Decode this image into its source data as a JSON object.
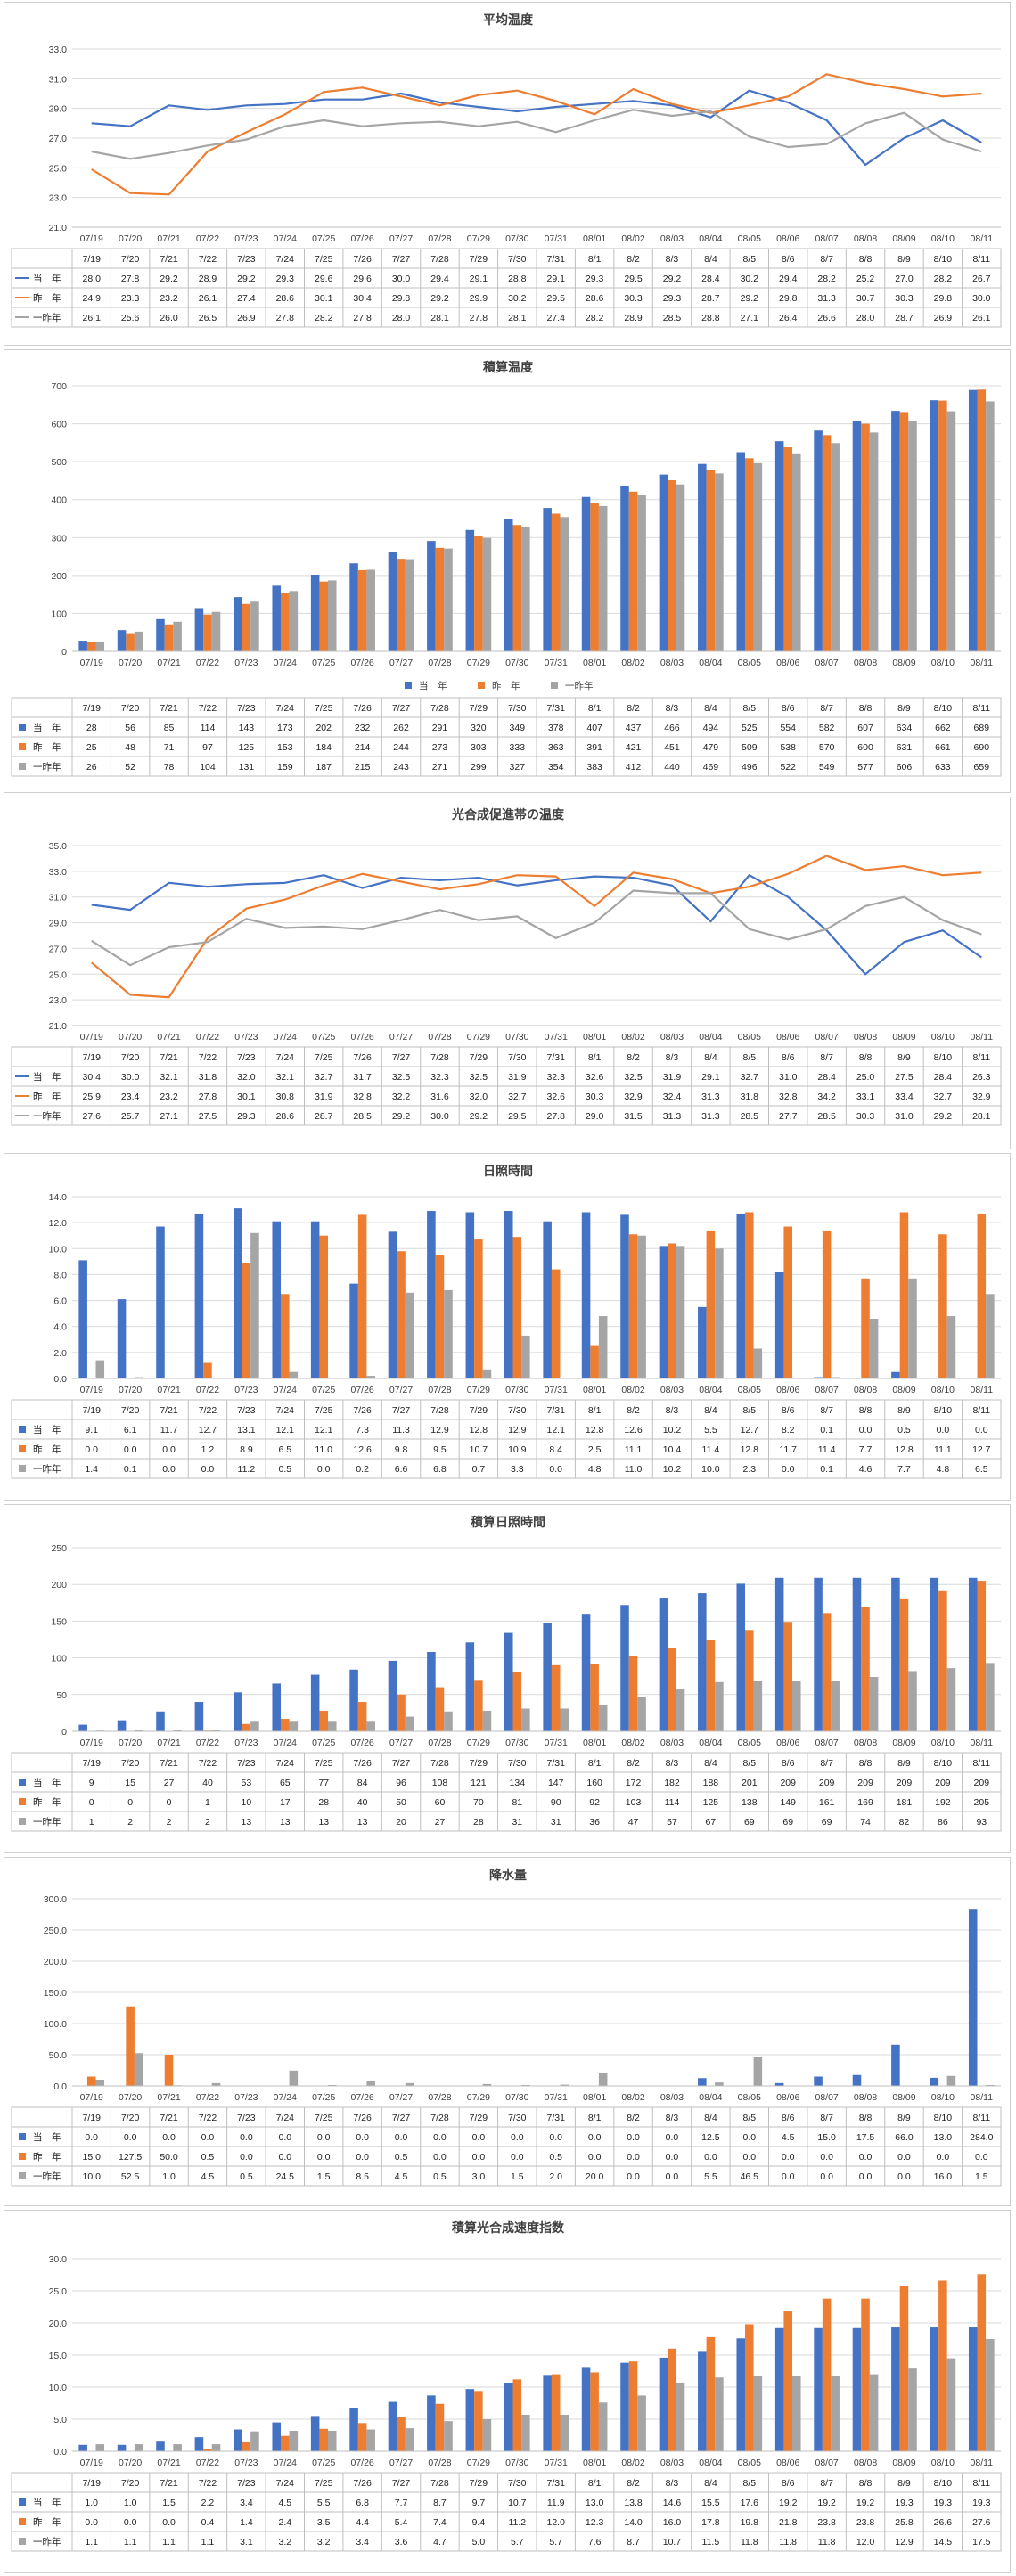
{
  "colors": {
    "current": "#4472C4",
    "last_year": "#ED7D31",
    "two_years": "#A5A5A5"
  },
  "legend_labels": {
    "current": "当　年",
    "last_year": "昨　年",
    "two_years": "一昨年"
  },
  "chart_data": [
    {
      "type": "line",
      "title": "平均温度",
      "ylim": [
        21.0,
        33.0
      ],
      "yticks": [
        "33.0",
        "31.0",
        "29.0",
        "27.0",
        "25.0",
        "23.0",
        "21.0"
      ],
      "axis_categories": [
        "07/19",
        "07/20",
        "07/21",
        "07/22",
        "07/23",
        "07/24",
        "07/25",
        "07/26",
        "07/27",
        "07/28",
        "07/29",
        "07/30",
        "07/31",
        "08/01",
        "08/02",
        "08/03",
        "08/04",
        "08/05",
        "08/06",
        "08/07",
        "08/08",
        "08/09",
        "08/10",
        "08/11"
      ],
      "categories": [
        "7/19",
        "7/20",
        "7/21",
        "7/22",
        "7/23",
        "7/24",
        "7/25",
        "7/26",
        "7/27",
        "7/28",
        "7/29",
        "7/30",
        "7/31",
        "8/1",
        "8/2",
        "8/3",
        "8/4",
        "8/5",
        "8/6",
        "8/7",
        "8/8",
        "8/9",
        "8/10",
        "8/11"
      ],
      "series": [
        {
          "name": "当　年",
          "key": "current",
          "values": [
            28.0,
            27.8,
            29.2,
            28.9,
            29.2,
            29.3,
            29.6,
            29.6,
            30.0,
            29.4,
            29.1,
            28.8,
            29.1,
            29.3,
            29.5,
            29.2,
            28.4,
            30.2,
            29.4,
            28.2,
            25.2,
            27.0,
            28.2,
            26.7
          ]
        },
        {
          "name": "昨　年",
          "key": "last_year",
          "values": [
            24.9,
            23.3,
            23.2,
            26.1,
            27.4,
            28.6,
            30.1,
            30.4,
            29.8,
            29.2,
            29.9,
            30.2,
            29.5,
            28.6,
            30.3,
            29.3,
            28.7,
            29.2,
            29.8,
            31.3,
            30.7,
            30.3,
            29.8,
            30.0
          ]
        },
        {
          "name": "一昨年",
          "key": "two_years",
          "values": [
            26.1,
            25.6,
            26.0,
            26.5,
            26.9,
            27.8,
            28.2,
            27.8,
            28.0,
            28.1,
            27.8,
            28.1,
            27.4,
            28.2,
            28.9,
            28.5,
            28.8,
            27.1,
            26.4,
            26.6,
            28.0,
            28.7,
            26.9,
            26.1
          ]
        }
      ]
    },
    {
      "type": "bar",
      "title": "積算温度",
      "ylim": [
        0,
        700
      ],
      "yticks": [
        "700",
        "600",
        "500",
        "400",
        "300",
        "200",
        "100",
        "0"
      ],
      "axis_categories": [
        "07/19",
        "07/20",
        "07/21",
        "07/22",
        "07/23",
        "07/24",
        "07/25",
        "07/26",
        "07/27",
        "07/28",
        "07/29",
        "07/30",
        "07/31",
        "08/01",
        "08/02",
        "08/03",
        "08/04",
        "08/05",
        "08/06",
        "08/07",
        "08/08",
        "08/09",
        "08/10",
        "08/11"
      ],
      "categories": [
        "7/19",
        "7/20",
        "7/21",
        "7/22",
        "7/23",
        "7/24",
        "7/25",
        "7/26",
        "7/27",
        "7/28",
        "7/29",
        "7/30",
        "7/31",
        "8/1",
        "8/2",
        "8/3",
        "8/4",
        "8/5",
        "8/6",
        "8/7",
        "8/8",
        "8/9",
        "8/10",
        "8/11"
      ],
      "series": [
        {
          "name": "当　年",
          "key": "current",
          "values": [
            28,
            56,
            85,
            114,
            143,
            173,
            202,
            232,
            262,
            291,
            320,
            349,
            378,
            407,
            437,
            466,
            494,
            525,
            554,
            582,
            607,
            634,
            662,
            689
          ]
        },
        {
          "name": "昨　年",
          "key": "last_year",
          "values": [
            25,
            48,
            71,
            97,
            125,
            153,
            184,
            214,
            244,
            273,
            303,
            333,
            363,
            391,
            421,
            451,
            479,
            509,
            538,
            570,
            600,
            631,
            661,
            690
          ]
        },
        {
          "name": "一昨年",
          "key": "two_years",
          "values": [
            26,
            52,
            78,
            104,
            131,
            159,
            187,
            215,
            243,
            271,
            299,
            327,
            354,
            383,
            412,
            440,
            469,
            496,
            522,
            549,
            577,
            606,
            633,
            659
          ]
        }
      ],
      "legend": [
        "当　年",
        "昨　年",
        "一昨年"
      ]
    },
    {
      "type": "line",
      "title": "光合成促進帯の温度",
      "ylim": [
        21.0,
        35.0
      ],
      "yticks": [
        "35.0",
        "33.0",
        "31.0",
        "29.0",
        "27.0",
        "25.0",
        "23.0",
        "21.0"
      ],
      "axis_categories": [
        "07/19",
        "07/20",
        "07/21",
        "07/22",
        "07/23",
        "07/24",
        "07/25",
        "07/26",
        "07/27",
        "07/28",
        "07/29",
        "07/30",
        "07/31",
        "08/01",
        "08/02",
        "08/03",
        "08/04",
        "08/05",
        "08/06",
        "08/07",
        "08/08",
        "08/09",
        "08/10",
        "08/11"
      ],
      "categories": [
        "7/19",
        "7/20",
        "7/21",
        "7/22",
        "7/23",
        "7/24",
        "7/25",
        "7/26",
        "7/27",
        "7/28",
        "7/29",
        "7/30",
        "7/31",
        "8/1",
        "8/2",
        "8/3",
        "8/4",
        "8/5",
        "8/6",
        "8/7",
        "8/8",
        "8/9",
        "8/10",
        "8/11"
      ],
      "series": [
        {
          "name": "当　年",
          "key": "current",
          "values": [
            30.4,
            30.0,
            32.1,
            31.8,
            32.0,
            32.1,
            32.7,
            31.7,
            32.5,
            32.3,
            32.5,
            31.9,
            32.3,
            32.6,
            32.5,
            31.9,
            29.1,
            32.7,
            31.0,
            28.4,
            25.0,
            27.5,
            28.4,
            26.3
          ]
        },
        {
          "name": "昨　年",
          "key": "last_year",
          "values": [
            25.9,
            23.4,
            23.2,
            27.8,
            30.1,
            30.8,
            31.9,
            32.8,
            32.2,
            31.6,
            32.0,
            32.7,
            32.6,
            30.3,
            32.9,
            32.4,
            31.3,
            31.8,
            32.8,
            34.2,
            33.1,
            33.4,
            32.7,
            32.9
          ]
        },
        {
          "name": "一昨年",
          "key": "two_years",
          "values": [
            27.6,
            25.7,
            27.1,
            27.5,
            29.3,
            28.6,
            28.7,
            28.5,
            29.2,
            30.0,
            29.2,
            29.5,
            27.8,
            29.0,
            31.5,
            31.3,
            31.3,
            28.5,
            27.7,
            28.5,
            30.3,
            31.0,
            29.2,
            28.1
          ]
        }
      ]
    },
    {
      "type": "bar",
      "title": "日照時間",
      "ylim": [
        0.0,
        14.0
      ],
      "yticks": [
        "14.0",
        "12.0",
        "10.0",
        "8.0",
        "6.0",
        "4.0",
        "2.0",
        "0.0"
      ],
      "axis_categories": [
        "07/19",
        "07/20",
        "07/21",
        "07/22",
        "07/23",
        "07/24",
        "07/25",
        "07/26",
        "07/27",
        "07/28",
        "07/29",
        "07/30",
        "07/31",
        "08/01",
        "08/02",
        "08/03",
        "08/04",
        "08/05",
        "08/06",
        "08/07",
        "08/08",
        "08/09",
        "08/10",
        "08/11"
      ],
      "categories": [
        "7/19",
        "7/20",
        "7/21",
        "7/22",
        "7/23",
        "7/24",
        "7/25",
        "7/26",
        "7/27",
        "7/28",
        "7/29",
        "7/30",
        "7/31",
        "8/1",
        "8/2",
        "8/3",
        "8/4",
        "8/5",
        "8/6",
        "8/7",
        "8/8",
        "8/9",
        "8/10",
        "8/11"
      ],
      "series": [
        {
          "name": "当　年",
          "key": "current",
          "values": [
            9.1,
            6.1,
            11.7,
            12.7,
            13.1,
            12.1,
            12.1,
            7.3,
            11.3,
            12.9,
            12.8,
            12.9,
            12.1,
            12.8,
            12.6,
            10.2,
            5.5,
            12.7,
            8.2,
            0.1,
            0.0,
            0.5,
            0.0,
            0.0
          ]
        },
        {
          "name": "昨　年",
          "key": "last_year",
          "values": [
            0.0,
            0.0,
            0.0,
            1.2,
            8.9,
            6.5,
            11.0,
            12.6,
            9.8,
            9.5,
            10.7,
            10.9,
            8.4,
            2.5,
            11.1,
            10.4,
            11.4,
            12.8,
            11.7,
            11.4,
            7.7,
            12.8,
            11.1,
            12.7
          ]
        },
        {
          "name": "一昨年",
          "key": "two_years",
          "values": [
            1.4,
            0.1,
            0.0,
            0.0,
            11.2,
            0.5,
            0.0,
            0.2,
            6.6,
            6.8,
            0.7,
            3.3,
            0.0,
            4.8,
            11.0,
            10.2,
            10.0,
            2.3,
            0.0,
            0.1,
            4.6,
            7.7,
            4.8,
            6.5
          ]
        }
      ]
    },
    {
      "type": "bar",
      "title": "積算日照時間",
      "ylim": [
        0,
        250
      ],
      "yticks": [
        "250",
        "200",
        "150",
        "100",
        "50",
        "0"
      ],
      "axis_categories": [
        "07/19",
        "07/20",
        "07/21",
        "07/22",
        "07/23",
        "07/24",
        "07/25",
        "07/26",
        "07/27",
        "07/28",
        "07/29",
        "07/30",
        "07/31",
        "08/01",
        "08/02",
        "08/03",
        "08/04",
        "08/05",
        "08/06",
        "08/07",
        "08/08",
        "08/09",
        "08/10",
        "08/11"
      ],
      "categories": [
        "7/19",
        "7/20",
        "7/21",
        "7/22",
        "7/23",
        "7/24",
        "7/25",
        "7/26",
        "7/27",
        "7/28",
        "7/29",
        "7/30",
        "7/31",
        "8/1",
        "8/2",
        "8/3",
        "8/4",
        "8/5",
        "8/6",
        "8/7",
        "8/8",
        "8/9",
        "8/10",
        "8/11"
      ],
      "series": [
        {
          "name": "当　年",
          "key": "current",
          "values": [
            9,
            15,
            27,
            40,
            53,
            65,
            77,
            84,
            96,
            108,
            121,
            134,
            147,
            160,
            172,
            182,
            188,
            201,
            209,
            209,
            209,
            209,
            209,
            209
          ]
        },
        {
          "name": "昨　年",
          "key": "last_year",
          "values": [
            0,
            0,
            0,
            1,
            10,
            17,
            28,
            40,
            50,
            60,
            70,
            81,
            90,
            92,
            103,
            114,
            125,
            138,
            149,
            161,
            169,
            181,
            192,
            205
          ]
        },
        {
          "name": "一昨年",
          "key": "two_years",
          "values": [
            1,
            2,
            2,
            2,
            13,
            13,
            13,
            13,
            20,
            27,
            28,
            31,
            31,
            36,
            47,
            57,
            67,
            69,
            69,
            69,
            74,
            82,
            86,
            93
          ]
        }
      ]
    },
    {
      "type": "bar",
      "title": "降水量",
      "ylim": [
        0.0,
        300.0
      ],
      "yticks": [
        "300.0",
        "250.0",
        "200.0",
        "150.0",
        "100.0",
        "50.0",
        "0.0"
      ],
      "axis_categories": [
        "07/19",
        "07/20",
        "07/21",
        "07/22",
        "07/23",
        "07/24",
        "07/25",
        "07/26",
        "07/27",
        "07/28",
        "07/29",
        "07/30",
        "07/31",
        "08/01",
        "08/02",
        "08/03",
        "08/04",
        "08/05",
        "08/06",
        "08/07",
        "08/08",
        "08/09",
        "08/10",
        "08/11"
      ],
      "categories": [
        "7/19",
        "7/20",
        "7/21",
        "7/22",
        "7/23",
        "7/24",
        "7/25",
        "7/26",
        "7/27",
        "7/28",
        "7/29",
        "7/30",
        "7/31",
        "8/1",
        "8/2",
        "8/3",
        "8/4",
        "8/5",
        "8/6",
        "8/7",
        "8/8",
        "8/9",
        "8/10",
        "8/11"
      ],
      "series": [
        {
          "name": "当　年",
          "key": "current",
          "values": [
            0.0,
            0.0,
            0.0,
            0.0,
            0.0,
            0.0,
            0.0,
            0.0,
            0.0,
            0.0,
            0.0,
            0.0,
            0.0,
            0.0,
            0.0,
            0.0,
            12.5,
            0.0,
            4.5,
            15.0,
            17.5,
            66.0,
            13.0,
            284.0
          ]
        },
        {
          "name": "昨　年",
          "key": "last_year",
          "values": [
            15.0,
            127.5,
            50.0,
            0.5,
            0.0,
            0.0,
            0.0,
            0.0,
            0.5,
            0.0,
            0.0,
            0.0,
            0.5,
            0.0,
            0.0,
            0.0,
            0.0,
            0.0,
            0.0,
            0.0,
            0.0,
            0.0,
            0.0,
            0.0
          ]
        },
        {
          "name": "一昨年",
          "key": "two_years",
          "values": [
            10.0,
            52.5,
            1.0,
            4.5,
            0.5,
            24.5,
            1.5,
            8.5,
            4.5,
            0.5,
            3.0,
            1.5,
            2.0,
            20.0,
            0.0,
            0.0,
            5.5,
            46.5,
            0.0,
            0.0,
            0.0,
            0.0,
            16.0,
            1.5
          ]
        }
      ]
    },
    {
      "type": "bar",
      "title": "積算光合成速度指数",
      "ylim": [
        0.0,
        30.0
      ],
      "yticks": [
        "30.0",
        "25.0",
        "20.0",
        "15.0",
        "10.0",
        "5.0",
        "0.0"
      ],
      "axis_categories": [
        "07/19",
        "07/20",
        "07/21",
        "07/22",
        "07/23",
        "07/24",
        "07/25",
        "07/26",
        "07/27",
        "07/28",
        "07/29",
        "07/30",
        "07/31",
        "08/01",
        "08/02",
        "08/03",
        "08/04",
        "08/05",
        "08/06",
        "08/07",
        "08/08",
        "08/09",
        "08/10",
        "08/11"
      ],
      "categories": [
        "7/19",
        "7/20",
        "7/21",
        "7/22",
        "7/23",
        "7/24",
        "7/25",
        "7/26",
        "7/27",
        "7/28",
        "7/29",
        "7/30",
        "7/31",
        "8/1",
        "8/2",
        "8/3",
        "8/4",
        "8/5",
        "8/6",
        "8/7",
        "8/8",
        "8/9",
        "8/10",
        "8/11"
      ],
      "series": [
        {
          "name": "当　年",
          "key": "current",
          "values": [
            1.0,
            1.0,
            1.5,
            2.2,
            3.4,
            4.5,
            5.5,
            6.8,
            7.7,
            8.7,
            9.7,
            10.7,
            11.9,
            13.0,
            13.8,
            14.6,
            15.5,
            17.6,
            19.2,
            19.2,
            19.2,
            19.3,
            19.3,
            19.3
          ]
        },
        {
          "name": "昨　年",
          "key": "last_year",
          "values": [
            0.0,
            0.0,
            0.0,
            0.4,
            1.4,
            2.4,
            3.5,
            4.4,
            5.4,
            7.4,
            9.4,
            11.2,
            12.0,
            12.3,
            14.0,
            16.0,
            17.8,
            19.8,
            21.8,
            23.8,
            23.8,
            25.8,
            26.6,
            27.6
          ]
        },
        {
          "name": "一昨年",
          "key": "two_years",
          "values": [
            1.1,
            1.1,
            1.1,
            1.1,
            3.1,
            3.2,
            3.2,
            3.4,
            3.6,
            4.7,
            5.0,
            5.7,
            5.7,
            7.6,
            8.7,
            10.7,
            11.5,
            11.8,
            11.8,
            11.8,
            12.0,
            12.9,
            14.5,
            17.5
          ]
        }
      ]
    }
  ]
}
